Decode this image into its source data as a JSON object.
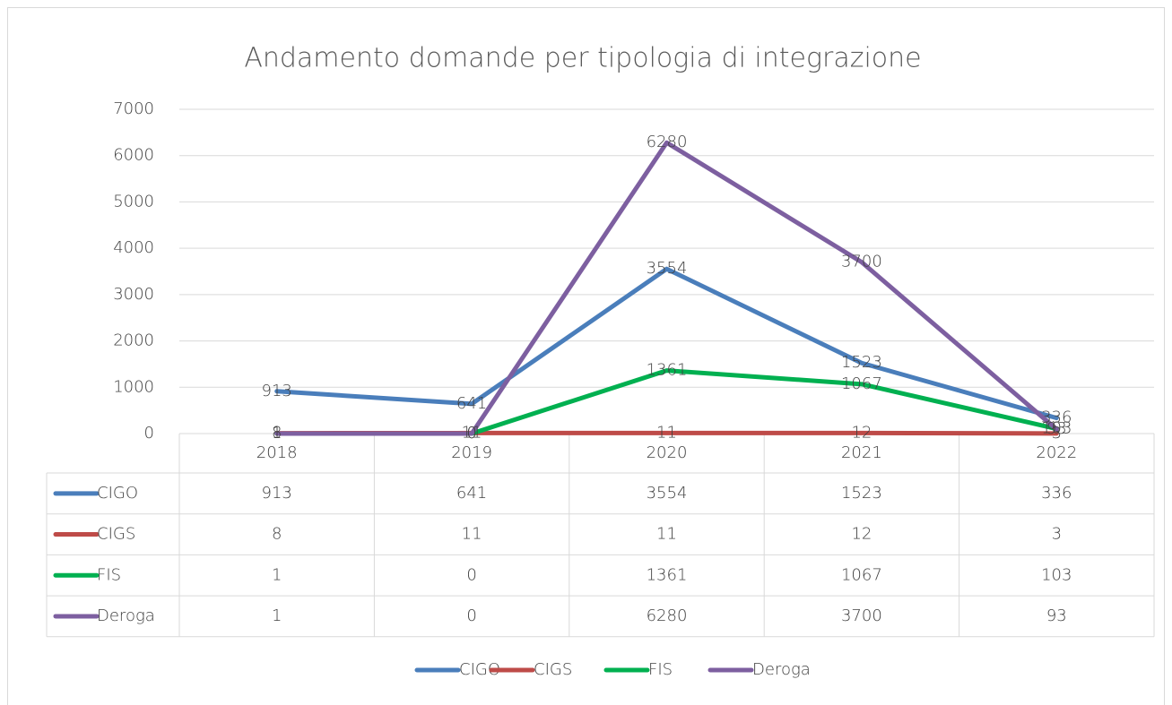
{
  "chart_data": {
    "type": "line",
    "title": "Andamento domande per tipologia di integrazione",
    "categories": [
      "2018",
      "2019",
      "2020",
      "2021",
      "2022"
    ],
    "series": [
      {
        "name": "CIGO",
        "color": "#4a7ebb",
        "values": [
          913,
          641,
          3554,
          1523,
          336
        ]
      },
      {
        "name": "CIGS",
        "color": "#be4b48",
        "values": [
          8,
          11,
          11,
          12,
          3
        ]
      },
      {
        "name": "FIS",
        "color": "#00b050",
        "values": [
          1,
          0,
          1361,
          1067,
          103
        ]
      },
      {
        "name": "Deroga",
        "color": "#7d5fa0",
        "values": [
          1,
          0,
          6280,
          3700,
          93
        ]
      }
    ],
    "ylim": [
      0,
      7000
    ],
    "yticks": [
      0,
      1000,
      2000,
      3000,
      4000,
      5000,
      6000,
      7000
    ],
    "grid": true,
    "legend": "bottom",
    "data_table": true
  }
}
